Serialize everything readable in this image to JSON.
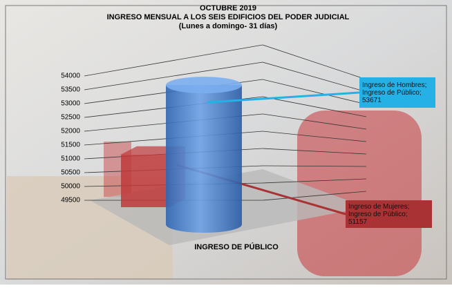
{
  "chart_data": {
    "type": "bar3d",
    "title": "OCTUBRE 2019",
    "subtitle": "INGRESO MENSUAL A LOS SEIS EDIFICIOS DEL PODER JUDICIAL",
    "note": "(Lunes a domingo- 31 días)",
    "x_label": "INGRESO DE PÚBLICO",
    "ylim": [
      49500,
      54000
    ],
    "yticks": [
      49500,
      50000,
      50500,
      51000,
      51500,
      52000,
      52500,
      53000,
      53500,
      54000
    ],
    "grid": true,
    "series": [
      {
        "shape": "box",
        "color": "#c0393b",
        "label_color": "#a93234",
        "values": [
          51157
        ],
        "value_labels": [
          "Ingreso de Mujeres; Ingreso de Público; 51157"
        ]
      },
      {
        "shape": "cylinder",
        "color": "#4a86d4",
        "label_color": "#25b0e6",
        "values": [
          53671
        ],
        "value_labels": [
          "Ingreso  de Hombres; Ingreso de Público; 53671"
        ]
      }
    ]
  }
}
